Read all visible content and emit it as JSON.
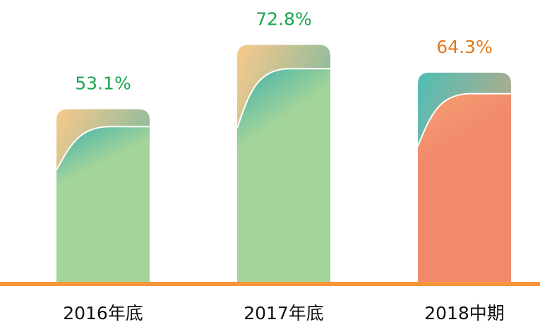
{
  "chart_data": {
    "type": "bar",
    "categories": [
      "2016年底",
      "2017年底",
      "2018中期"
    ],
    "values": [
      53.1,
      72.8,
      64.3
    ],
    "value_labels": [
      "53.1%",
      "72.8%",
      "64.3%"
    ],
    "value_label_colors": [
      "#1aa64c",
      "#1aa64c",
      "#e2791c"
    ],
    "colors": [
      [
        "#f9c98c",
        "#3fb1a8",
        "#a3d49a"
      ],
      [
        "#f9c98c",
        "#3fb1a8",
        "#a3d49a"
      ],
      [
        "#4fbdb6",
        "#f5a070",
        "#f28a6e"
      ]
    ],
    "baseline_color": "#f5963a"
  }
}
